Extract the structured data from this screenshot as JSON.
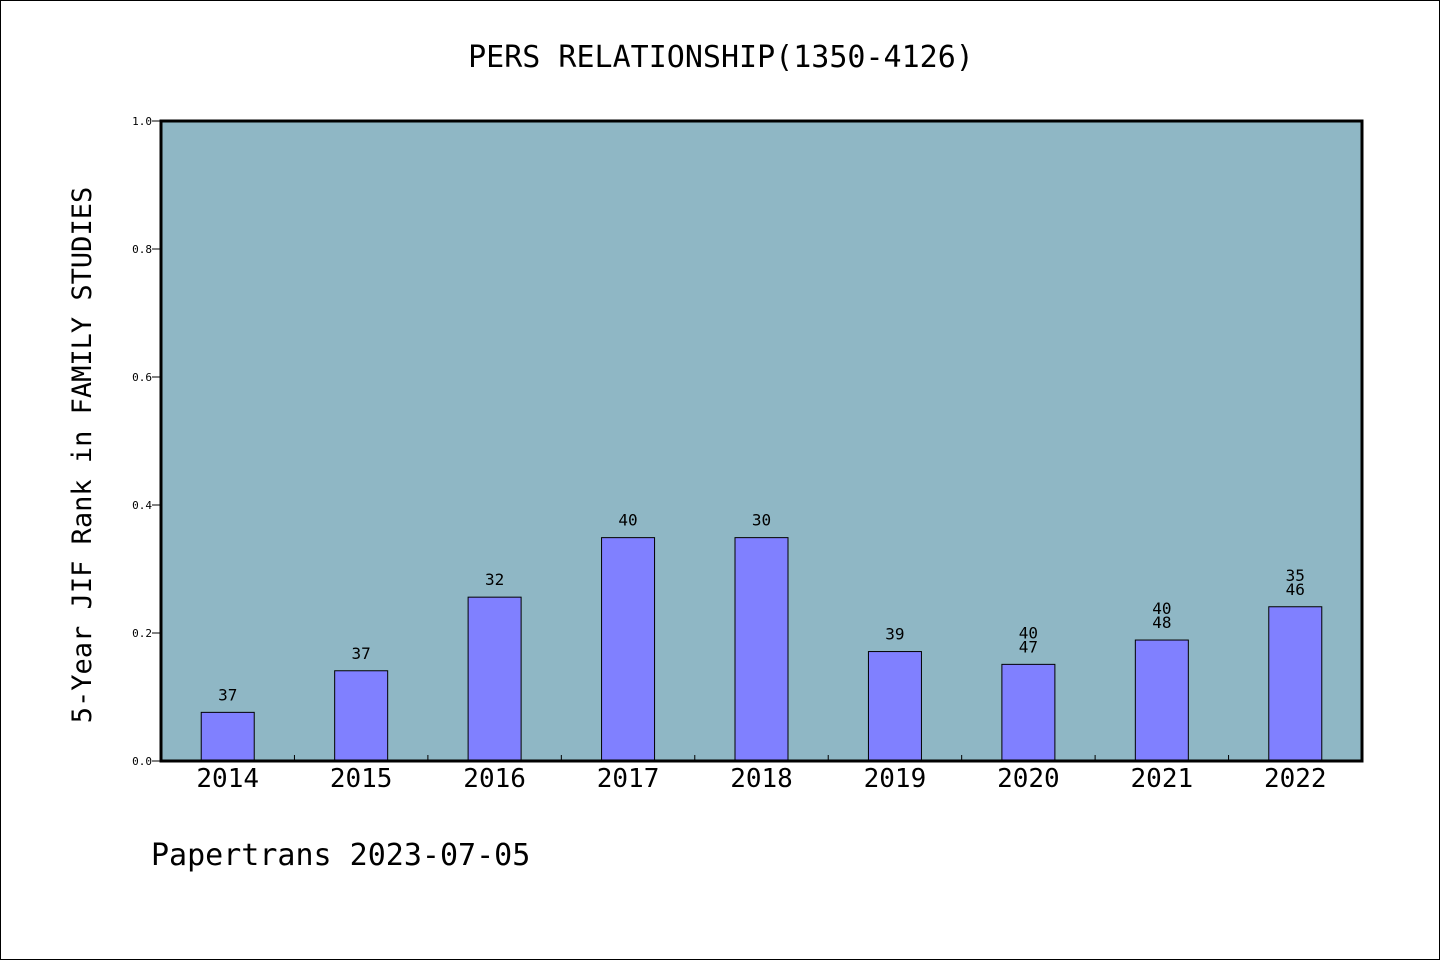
{
  "chart_data": {
    "type": "bar",
    "title": "PERS RELATIONSHIP(1350-4126)",
    "xlabel": "",
    "ylabel": "5-Year JIF Rank in FAMILY STUDIES",
    "ylim": [
      0,
      1.0
    ],
    "yticks": [
      "0.0",
      "0.2",
      "0.4",
      "0.6",
      "0.8",
      "1.0"
    ],
    "categories": [
      "2014",
      "2015",
      "2016",
      "2017",
      "2018",
      "2019",
      "2020",
      "2021",
      "2022"
    ],
    "values": [
      0.076,
      0.141,
      0.256,
      0.349,
      0.349,
      0.171,
      0.151,
      0.189,
      0.241
    ],
    "bar_labels": [
      [
        "37"
      ],
      [
        "37"
      ],
      [
        "32"
      ],
      [
        "40"
      ],
      [
        "30"
      ],
      [
        "39"
      ],
      [
        "40",
        "47"
      ],
      [
        "40",
        "48"
      ],
      [
        "35",
        "46"
      ]
    ],
    "footer": "Papertrans 2023-07-05",
    "colors": {
      "plot_background": "#8fb7c5",
      "bar_fill": "#8080ff",
      "bar_edge": "#000000"
    }
  }
}
